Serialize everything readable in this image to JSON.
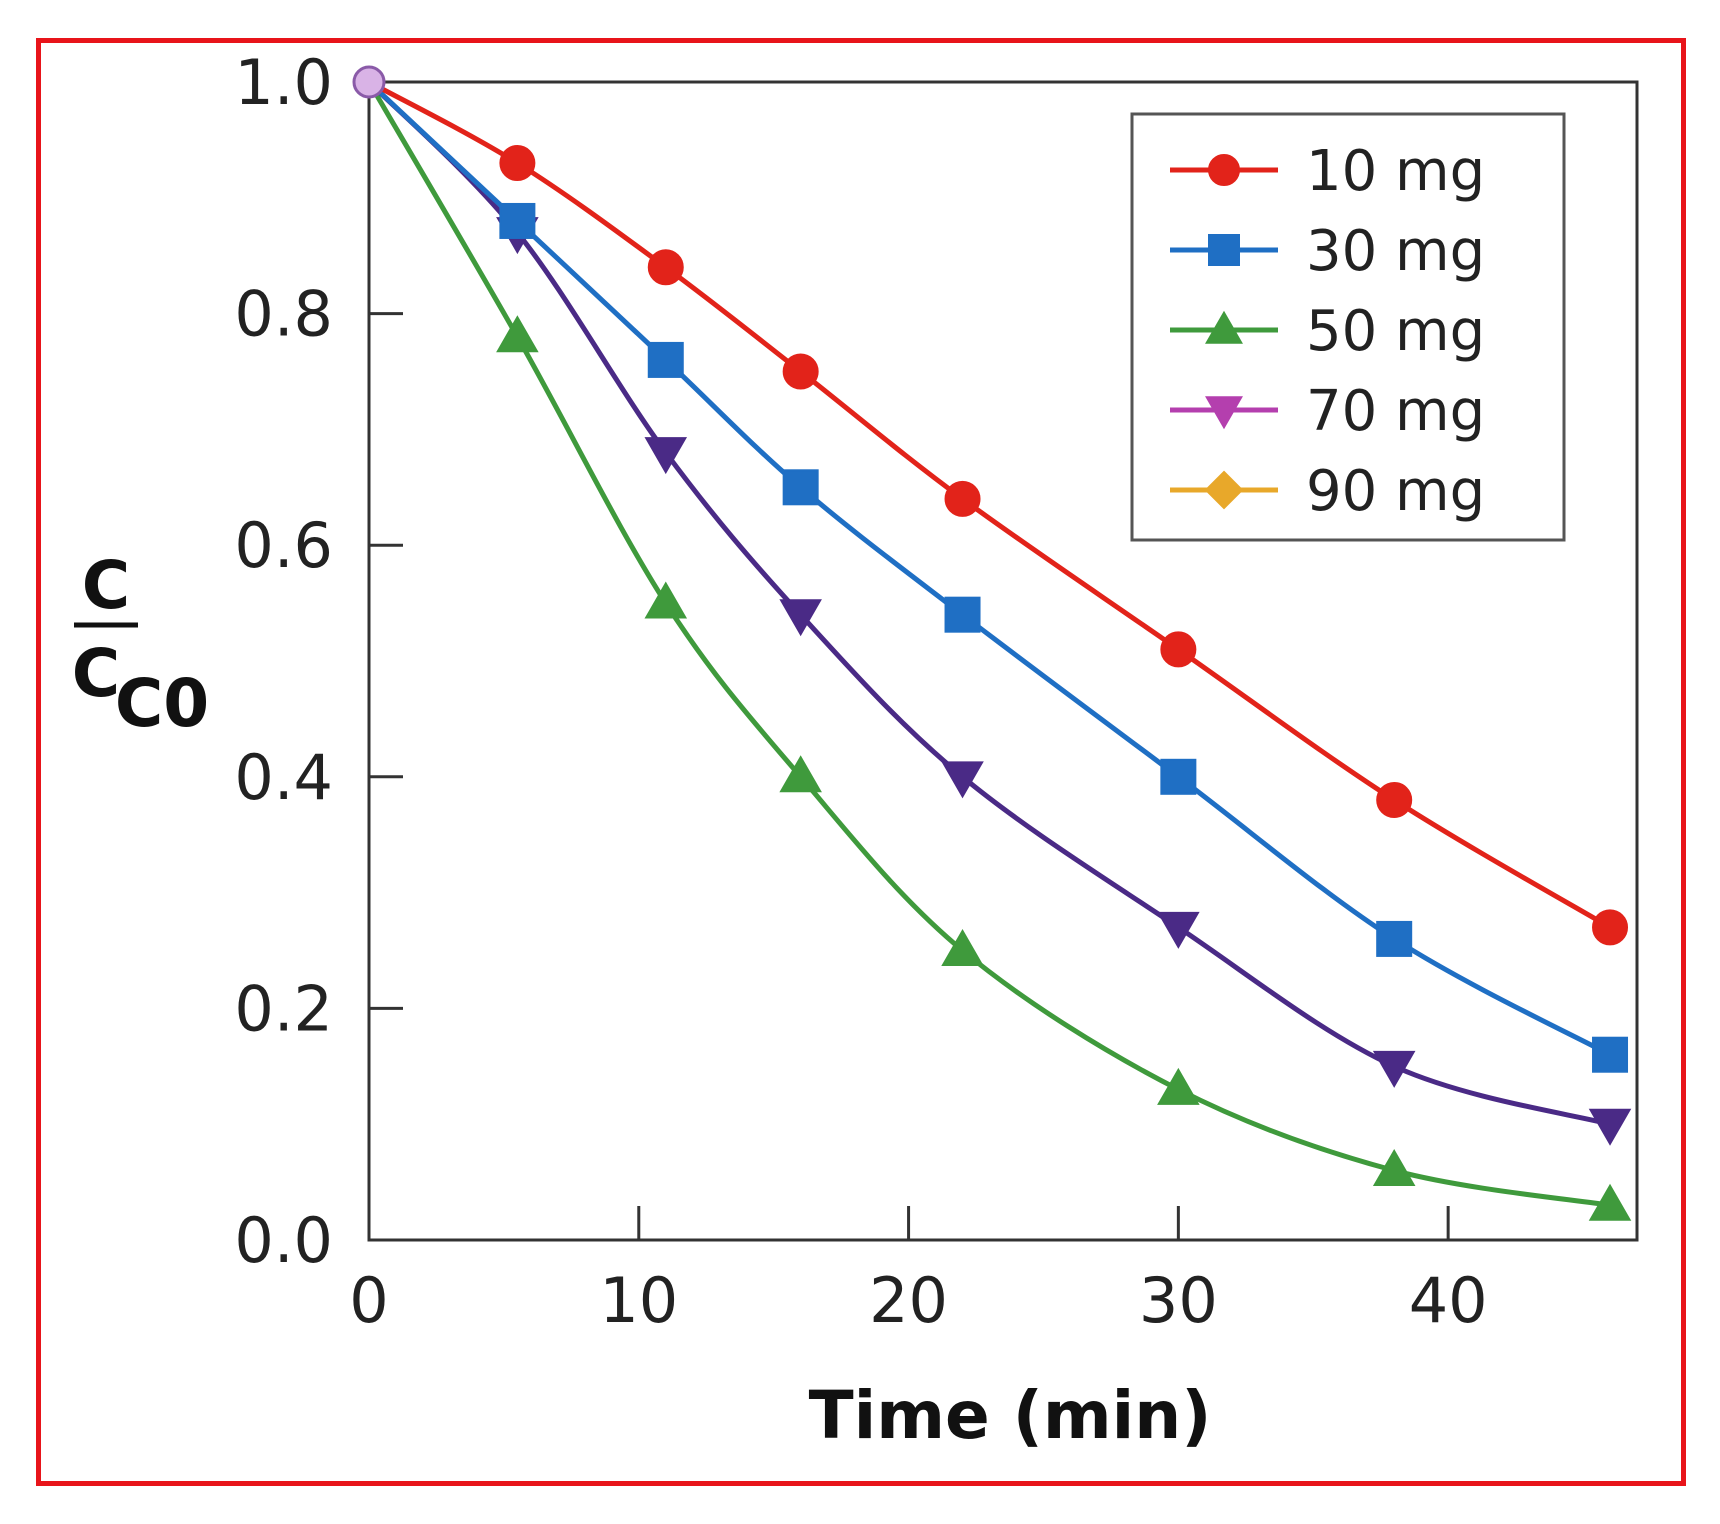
{
  "chart_data": {
    "type": "line",
    "title": "",
    "xlabel": "Time (min)",
    "ylabel": {
      "numerator": "C",
      "denominator": "C",
      "subscript": "C0"
    },
    "xlim": [
      0,
      47
    ],
    "ylim": [
      0,
      1
    ],
    "xticks": [
      0,
      10,
      20,
      30,
      40
    ],
    "xtick_labels": [
      "0",
      "10",
      "20",
      "30",
      "40"
    ],
    "yticks": [
      0,
      0.2,
      0.4,
      0.6,
      0.8,
      1.0
    ],
    "ytick_labels": [
      "0.0",
      "0.2",
      "0.4",
      "0.6",
      "0.8",
      "1.0"
    ],
    "grid": false,
    "legend_position": "top-right",
    "series": [
      {
        "name": "10 mg",
        "color": "#e2231a",
        "marker": "circle",
        "points": [
          [
            0,
            1.0
          ],
          [
            5.5,
            0.93
          ],
          [
            11,
            0.84
          ],
          [
            16,
            0.75
          ],
          [
            22,
            0.64
          ],
          [
            30,
            0.51
          ],
          [
            38,
            0.38
          ],
          [
            46,
            0.27
          ]
        ]
      },
      {
        "name": "30 mg",
        "color": "#1f6fc4",
        "marker": "square",
        "points": [
          [
            0,
            1.0
          ],
          [
            5.5,
            0.88
          ],
          [
            11,
            0.76
          ],
          [
            16,
            0.65
          ],
          [
            22,
            0.54
          ],
          [
            30,
            0.4
          ],
          [
            38,
            0.26
          ],
          [
            46,
            0.16
          ]
        ]
      },
      {
        "name": "50 mg",
        "color": "#3f9a3c",
        "marker": "triangle-up",
        "points": [
          [
            0,
            1.0
          ],
          [
            5.5,
            0.78
          ],
          [
            11,
            0.55
          ],
          [
            16,
            0.4
          ],
          [
            22,
            0.25
          ],
          [
            30,
            0.13
          ],
          [
            38,
            0.06
          ],
          [
            46,
            0.03
          ]
        ]
      },
      {
        "name": "70 mg",
        "color": "#4a2a86",
        "marker": "triangle-down",
        "points": [
          [
            0,
            1.0
          ],
          [
            5.5,
            0.87
          ],
          [
            11,
            0.68
          ],
          [
            16,
            0.54
          ],
          [
            22,
            0.4
          ],
          [
            30,
            0.27
          ],
          [
            38,
            0.15
          ],
          [
            46,
            0.1
          ]
        ]
      },
      {
        "name": "90 mg",
        "color": "#e8a82a",
        "marker": "diamond",
        "points": [
          [
            0,
            1.0
          ]
        ]
      }
    ]
  },
  "legend_marker_colors": {
    "10 mg": "#e2231a",
    "30 mg": "#1f6fc4",
    "50 mg": "#3f9a3c",
    "70 mg": "#b43fae",
    "90 mg": "#e8a82a"
  }
}
